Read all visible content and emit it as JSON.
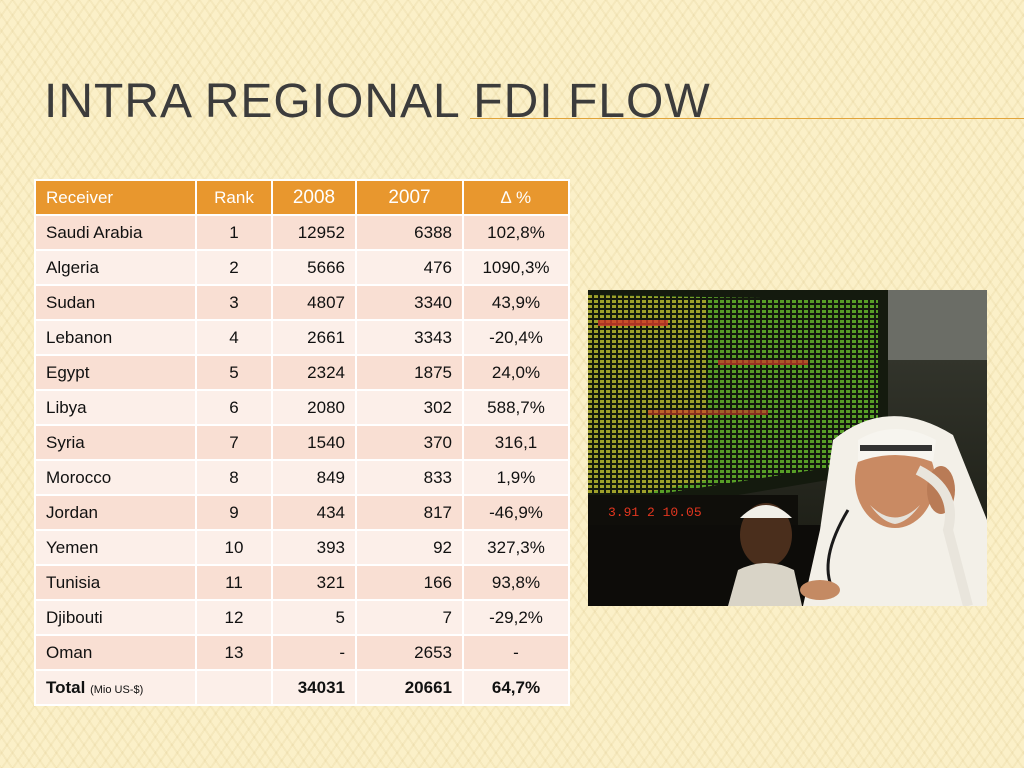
{
  "slide": {
    "title": "Intra Regional FDI Flow"
  },
  "table": {
    "headers": {
      "receiver": "Receiver",
      "rank": "Rank",
      "y2008": "2008",
      "y2007": "2007",
      "delta": "∆ %"
    },
    "rows": [
      {
        "receiver": "Saudi Arabia",
        "rank": "1",
        "y2008": "12952",
        "y2007": "6388",
        "delta": "102,8%"
      },
      {
        "receiver": "Algeria",
        "rank": "2",
        "y2008": "5666",
        "y2007": "476",
        "delta": "1090,3%"
      },
      {
        "receiver": "Sudan",
        "rank": "3",
        "y2008": "4807",
        "y2007": "3340",
        "delta": "43,9%"
      },
      {
        "receiver": "Lebanon",
        "rank": "4",
        "y2008": "2661",
        "y2007": "3343",
        "delta": "-20,4%"
      },
      {
        "receiver": "Egypt",
        "rank": "5",
        "y2008": "2324",
        "y2007": "1875",
        "delta": "24,0%"
      },
      {
        "receiver": "Libya",
        "rank": "6",
        "y2008": "2080",
        "y2007": "302",
        "delta": "588,7%"
      },
      {
        "receiver": "Syria",
        "rank": "7",
        "y2008": "1540",
        "y2007": "370",
        "delta": "316,1"
      },
      {
        "receiver": "Morocco",
        "rank": "8",
        "y2008": "849",
        "y2007": "833",
        "delta": "1,9%"
      },
      {
        "receiver": "Jordan",
        "rank": "9",
        "y2008": "434",
        "y2007": "817",
        "delta": "-46,9%"
      },
      {
        "receiver": "Yemen",
        "rank": "10",
        "y2008": "393",
        "y2007": "92",
        "delta": "327,3%"
      },
      {
        "receiver": "Tunisia",
        "rank": "11",
        "y2008": "321",
        "y2007": "166",
        "delta": "93,8%"
      },
      {
        "receiver": "Djibouti",
        "rank": "12",
        "y2008": "5",
        "y2007": "7",
        "delta": "-29,2%"
      },
      {
        "receiver": "Oman",
        "rank": "13",
        "y2008": "-",
        "y2007": "2653",
        "delta": "-"
      }
    ],
    "total": {
      "label": "Total",
      "note": "(Mio US-$)",
      "rank": "",
      "y2008": "34031",
      "y2007": "20661",
      "delta": "64,7%"
    }
  },
  "colors": {
    "header_bg": "#e8972e",
    "row_odd": "#f9dfd3",
    "row_even": "#fcefe9",
    "title_rule": "#e2a43a"
  },
  "photo": {
    "board_digits": "3.91 2 10.05"
  }
}
